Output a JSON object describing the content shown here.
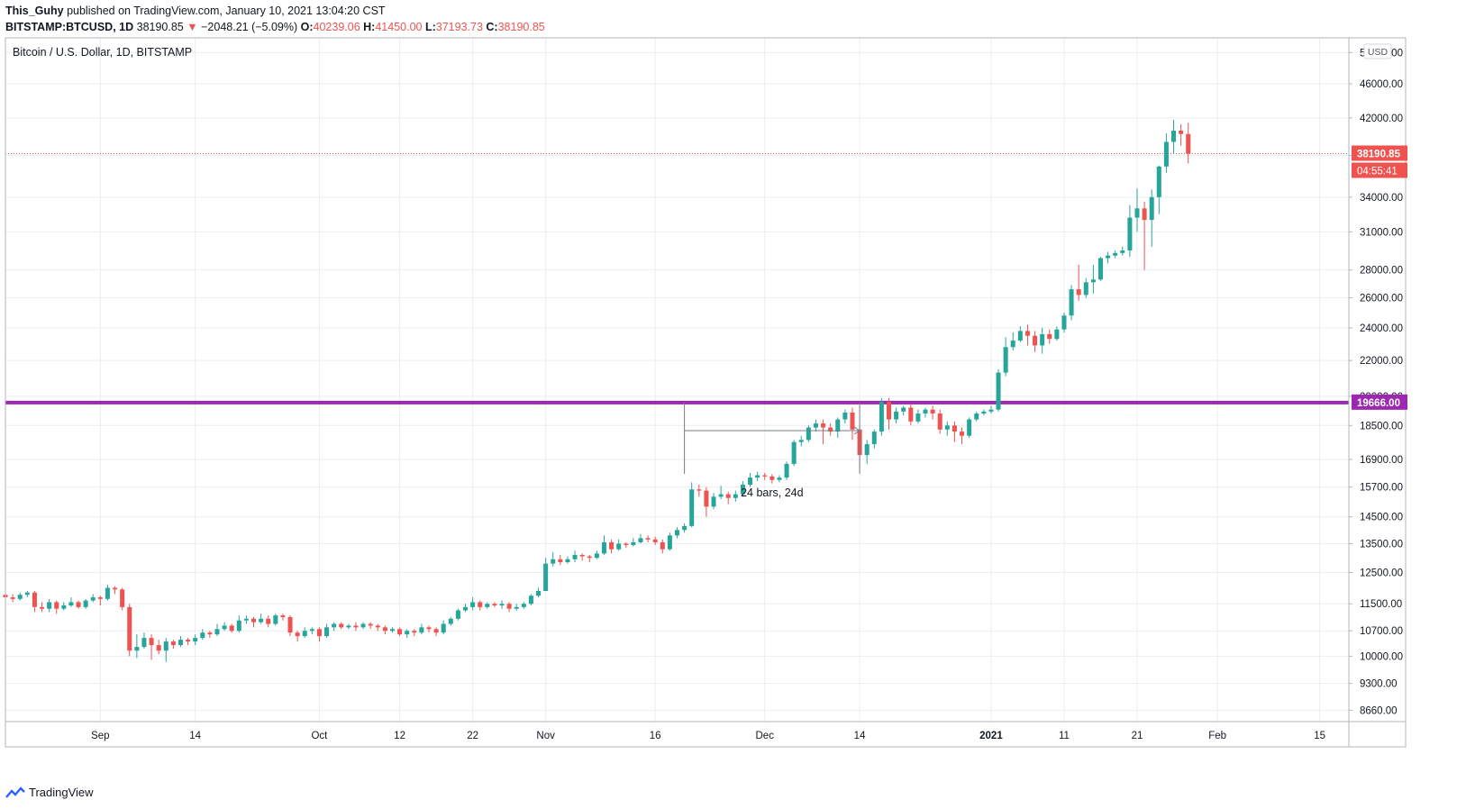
{
  "header": {
    "publisher": "This_Guhy",
    "published_text": "published on TradingView.com, January 10, 2021 13:04:20 CST",
    "symbol": "BITSTAMP:BTCUSD, 1D",
    "last": "38190.85",
    "change": "−2048.21 (−5.09%)",
    "o_label": "O:",
    "o_value": "40239.06",
    "h_label": "H:",
    "h_value": "41450.00",
    "l_label": "L:",
    "l_value": "37193.73",
    "c_label": "C:",
    "c_value": "38190.85"
  },
  "footer": {
    "brand": "TradingView"
  },
  "colors": {
    "up": "#26a69a",
    "down": "#ef5350",
    "level": "#9c27b0",
    "grid": "#e9eef3",
    "text": "#131722"
  },
  "chart_data": {
    "type": "candlestick",
    "title": "Bitcoin / U.S. Dollar, 1D, BITSTAMP",
    "currency": "USD",
    "scale": "log",
    "ylim": [
      8400,
      52000
    ],
    "y_ticks": [
      50000,
      46000,
      42000,
      38000,
      34000,
      31000,
      28000,
      26000,
      24000,
      22000,
      20000,
      18500,
      16900,
      15700,
      14500,
      13500,
      12500,
      11500,
      10700,
      10000,
      9300,
      8660
    ],
    "y_tick_labels": [
      "50000.00",
      "46000.00",
      "42000.00",
      "38000.00",
      "34000.00",
      "31000.00",
      "28000.00",
      "26000.00",
      "24000.00",
      "22000.00",
      "20000.00",
      "18500.00",
      "16900.00",
      "15700.00",
      "14500.00",
      "13500.00",
      "12500.00",
      "11500.00",
      "10700.00",
      "10000.00",
      "9300.00",
      "8660.00"
    ],
    "x_range": [
      "2020-08-19",
      "2021-02-19"
    ],
    "x_ticks": [
      {
        "date": "2020-09-01",
        "label": "Sep"
      },
      {
        "date": "2020-09-14",
        "label": "14"
      },
      {
        "date": "2020-10-01",
        "label": "Oct"
      },
      {
        "date": "2020-10-12",
        "label": "12"
      },
      {
        "date": "2020-10-22",
        "label": "22"
      },
      {
        "date": "2020-11-01",
        "label": "Nov"
      },
      {
        "date": "2020-11-16",
        "label": "16"
      },
      {
        "date": "2020-12-01",
        "label": "Dec"
      },
      {
        "date": "2020-12-14",
        "label": "14"
      },
      {
        "date": "2021-01-01",
        "label": "2021"
      },
      {
        "date": "2021-01-11",
        "label": "11"
      },
      {
        "date": "2021-01-21",
        "label": "21"
      },
      {
        "date": "2021-02-01",
        "label": "Feb"
      },
      {
        "date": "2021-02-15",
        "label": "15"
      }
    ],
    "first_date": "2020-08-19",
    "candles": [
      [
        11780,
        11700,
        11820,
        11450
      ],
      [
        11700,
        11650,
        11800,
        11550
      ],
      [
        11650,
        11780,
        11850,
        11600
      ],
      [
        11780,
        11850,
        11900,
        11700
      ],
      [
        11850,
        11400,
        11900,
        11250
      ],
      [
        11400,
        11350,
        11550,
        11250
      ],
      [
        11350,
        11550,
        11650,
        11250
      ],
      [
        11550,
        11350,
        11600,
        11200
      ],
      [
        11350,
        11450,
        11550,
        11300
      ],
      [
        11450,
        11550,
        11700,
        11400
      ],
      [
        11550,
        11400,
        11600,
        11350
      ],
      [
        11400,
        11600,
        11650,
        11350
      ],
      [
        11600,
        11700,
        11800,
        11550
      ],
      [
        11700,
        11650,
        11750,
        11450
      ],
      [
        11650,
        12000,
        12100,
        11600
      ],
      [
        12000,
        11950,
        12050,
        11800
      ],
      [
        11950,
        11400,
        12000,
        11300
      ],
      [
        11400,
        10150,
        11500,
        10000
      ],
      [
        10150,
        10250,
        10600,
        9950
      ],
      [
        10250,
        10500,
        10650,
        10200
      ],
      [
        10500,
        10300,
        10600,
        9900
      ],
      [
        10300,
        10150,
        10450,
        10050
      ],
      [
        10150,
        10400,
        10500,
        9850
      ],
      [
        10400,
        10300,
        10450,
        10200
      ],
      [
        10300,
        10450,
        10550,
        10250
      ],
      [
        10450,
        10400,
        10500,
        10300
      ],
      [
        10400,
        10500,
        10600,
        10300
      ],
      [
        10500,
        10650,
        10750,
        10450
      ],
      [
        10650,
        10600,
        10700,
        10500
      ],
      [
        10600,
        10750,
        10900,
        10550
      ],
      [
        10750,
        10850,
        10950,
        10700
      ],
      [
        10850,
        10700,
        10900,
        10650
      ],
      [
        10700,
        11000,
        11150,
        10650
      ],
      [
        11000,
        11050,
        11150,
        10900
      ],
      [
        11050,
        10950,
        11100,
        10800
      ],
      [
        10950,
        11050,
        11200,
        10900
      ],
      [
        11050,
        10900,
        11150,
        10800
      ],
      [
        10900,
        11150,
        11200,
        10850
      ],
      [
        11150,
        11100,
        11200,
        11000
      ],
      [
        11100,
        10650,
        11150,
        10550
      ],
      [
        10650,
        10550,
        10700,
        10400
      ],
      [
        10550,
        10700,
        10800,
        10500
      ],
      [
        10700,
        10750,
        10800,
        10600
      ],
      [
        10750,
        10550,
        10800,
        10400
      ],
      [
        10550,
        10800,
        10900,
        10500
      ],
      [
        10800,
        10900,
        10950,
        10700
      ],
      [
        10900,
        10800,
        10950,
        10750
      ],
      [
        10800,
        10850,
        10900,
        10750
      ],
      [
        10850,
        10800,
        10950,
        10700
      ],
      [
        10800,
        10900,
        10950,
        10750
      ],
      [
        10900,
        10850,
        10950,
        10750
      ],
      [
        10850,
        10800,
        10900,
        10700
      ],
      [
        10800,
        10700,
        10850,
        10600
      ],
      [
        10700,
        10750,
        10800,
        10650
      ],
      [
        10750,
        10600,
        10800,
        10550
      ],
      [
        10600,
        10700,
        10750,
        10500
      ],
      [
        10700,
        10650,
        10750,
        10550
      ],
      [
        10650,
        10800,
        10900,
        10600
      ],
      [
        10800,
        10750,
        10850,
        10650
      ],
      [
        10750,
        10650,
        10800,
        10550
      ],
      [
        10650,
        10900,
        11000,
        10600
      ],
      [
        10900,
        11050,
        11100,
        10850
      ],
      [
        11050,
        11300,
        11350,
        11000
      ],
      [
        11300,
        11400,
        11500,
        11250
      ],
      [
        11400,
        11550,
        11700,
        11300
      ],
      [
        11550,
        11400,
        11600,
        11300
      ],
      [
        11400,
        11500,
        11550,
        11350
      ],
      [
        11500,
        11450,
        11550,
        11400
      ],
      [
        11450,
        11500,
        11600,
        11350
      ],
      [
        11500,
        11350,
        11550,
        11250
      ],
      [
        11350,
        11400,
        11500,
        11300
      ],
      [
        11400,
        11500,
        11550,
        11350
      ],
      [
        11500,
        11750,
        11800,
        11450
      ],
      [
        11750,
        11900,
        12000,
        11700
      ],
      [
        11900,
        12800,
        13000,
        11900
      ],
      [
        12800,
        12950,
        13200,
        12700
      ],
      [
        12950,
        12850,
        13100,
        12750
      ],
      [
        12850,
        12950,
        13050,
        12800
      ],
      [
        12950,
        13100,
        13250,
        12850
      ],
      [
        13100,
        13050,
        13150,
        12900
      ],
      [
        13050,
        13000,
        13100,
        12850
      ],
      [
        13000,
        13150,
        13250,
        12950
      ],
      [
        13150,
        13550,
        13800,
        13100
      ],
      [
        13550,
        13300,
        13650,
        13150
      ],
      [
        13300,
        13500,
        13650,
        13250
      ],
      [
        13500,
        13450,
        13550,
        13350
      ],
      [
        13450,
        13550,
        13700,
        13400
      ],
      [
        13550,
        13700,
        13850,
        13500
      ],
      [
        13700,
        13650,
        13800,
        13550
      ],
      [
        13650,
        13550,
        13750,
        13450
      ],
      [
        13550,
        13300,
        13650,
        13150
      ],
      [
        13300,
        13800,
        13900,
        13250
      ],
      [
        13800,
        14000,
        14100,
        13700
      ],
      [
        14000,
        14150,
        14250,
        13900
      ],
      [
        14150,
        15600,
        15900,
        14100
      ],
      [
        15600,
        15550,
        15800,
        15300
      ],
      [
        15550,
        14900,
        15700,
        14500
      ],
      [
        14900,
        15300,
        15450,
        14800
      ],
      [
        15300,
        15400,
        15750,
        15200
      ],
      [
        15400,
        15250,
        15500,
        15000
      ],
      [
        15250,
        15400,
        15550,
        15100
      ],
      [
        15400,
        15800,
        15950,
        15300
      ],
      [
        15800,
        16100,
        16300,
        15700
      ],
      [
        16100,
        16200,
        16350,
        15950
      ],
      [
        16200,
        16150,
        16300,
        16000
      ],
      [
        16150,
        16000,
        16250,
        15850
      ],
      [
        16000,
        16100,
        16200,
        15900
      ],
      [
        16100,
        16700,
        16800,
        16000
      ],
      [
        16700,
        17700,
        17800,
        16600
      ],
      [
        17700,
        17800,
        18000,
        17500
      ],
      [
        17800,
        18400,
        18500,
        17700
      ],
      [
        18400,
        18600,
        18800,
        18200
      ],
      [
        18600,
        18400,
        18800,
        17600
      ],
      [
        18400,
        18200,
        18600,
        18000
      ],
      [
        18200,
        18800,
        18900,
        17900
      ],
      [
        18800,
        19150,
        19300,
        18600
      ],
      [
        19150,
        18300,
        19400,
        17800
      ],
      [
        18300,
        17100,
        18500,
        16500
      ],
      [
        17100,
        17600,
        17800,
        16700
      ],
      [
        17600,
        18200,
        18300,
        17400
      ],
      [
        18200,
        19700,
        19900,
        18000
      ],
      [
        19700,
        18800,
        19900,
        18300
      ],
      [
        18800,
        19200,
        19400,
        18600
      ],
      [
        19200,
        19400,
        19500,
        19000
      ],
      [
        19400,
        18700,
        19600,
        18500
      ],
      [
        18700,
        19100,
        19300,
        18600
      ],
      [
        19100,
        19300,
        19400,
        18900
      ],
      [
        19300,
        19100,
        19500,
        18800
      ],
      [
        19100,
        18300,
        19300,
        18100
      ],
      [
        18300,
        18500,
        18700,
        18000
      ],
      [
        18500,
        18200,
        18700,
        17700
      ],
      [
        18200,
        18000,
        18400,
        17600
      ],
      [
        18000,
        18800,
        18900,
        17900
      ],
      [
        18800,
        19100,
        19200,
        18700
      ],
      [
        19100,
        19200,
        19300,
        19000
      ],
      [
        19200,
        19300,
        19500,
        19100
      ],
      [
        19300,
        21300,
        21500,
        19200
      ],
      [
        21300,
        22800,
        23400,
        21100
      ],
      [
        22800,
        23200,
        23700,
        22600
      ],
      [
        23200,
        23800,
        24100,
        23100
      ],
      [
        23800,
        23500,
        24200,
        22900
      ],
      [
        23500,
        22900,
        23800,
        22500
      ],
      [
        22900,
        23600,
        24000,
        22400
      ],
      [
        23600,
        23300,
        23900,
        23000
      ],
      [
        23300,
        23900,
        24100,
        23200
      ],
      [
        23900,
        24800,
        25000,
        23700
      ],
      [
        24800,
        26600,
        26900,
        24500
      ],
      [
        26600,
        26200,
        28400,
        25800
      ],
      [
        26200,
        27100,
        27400,
        26000
      ],
      [
        27100,
        27300,
        28400,
        26300
      ],
      [
        27300,
        28900,
        29000,
        27200
      ],
      [
        28900,
        29100,
        29400,
        28500
      ],
      [
        29100,
        29300,
        29500,
        28900
      ],
      [
        29300,
        29500,
        29800,
        29100
      ],
      [
        29500,
        32200,
        33300,
        29000
      ],
      [
        32200,
        33000,
        34800,
        31000
      ],
      [
        33000,
        32000,
        33600,
        28000
      ],
      [
        32000,
        34000,
        34700,
        29800
      ],
      [
        34000,
        36900,
        37000,
        32500
      ],
      [
        36900,
        39400,
        40300,
        36300
      ],
      [
        39400,
        40600,
        41800,
        38200
      ],
      [
        40600,
        40239.06,
        41300,
        39000
      ],
      [
        40239.06,
        38190.85,
        41450,
        37193.73
      ]
    ],
    "current_price": "38190.85",
    "countdown": "04:55:41",
    "level": {
      "value": 19666,
      "label": "19666.00"
    },
    "measure": {
      "from": "2020-11-20",
      "to": "2020-12-14",
      "price": 18250,
      "label": "24 bars, 24d"
    }
  }
}
